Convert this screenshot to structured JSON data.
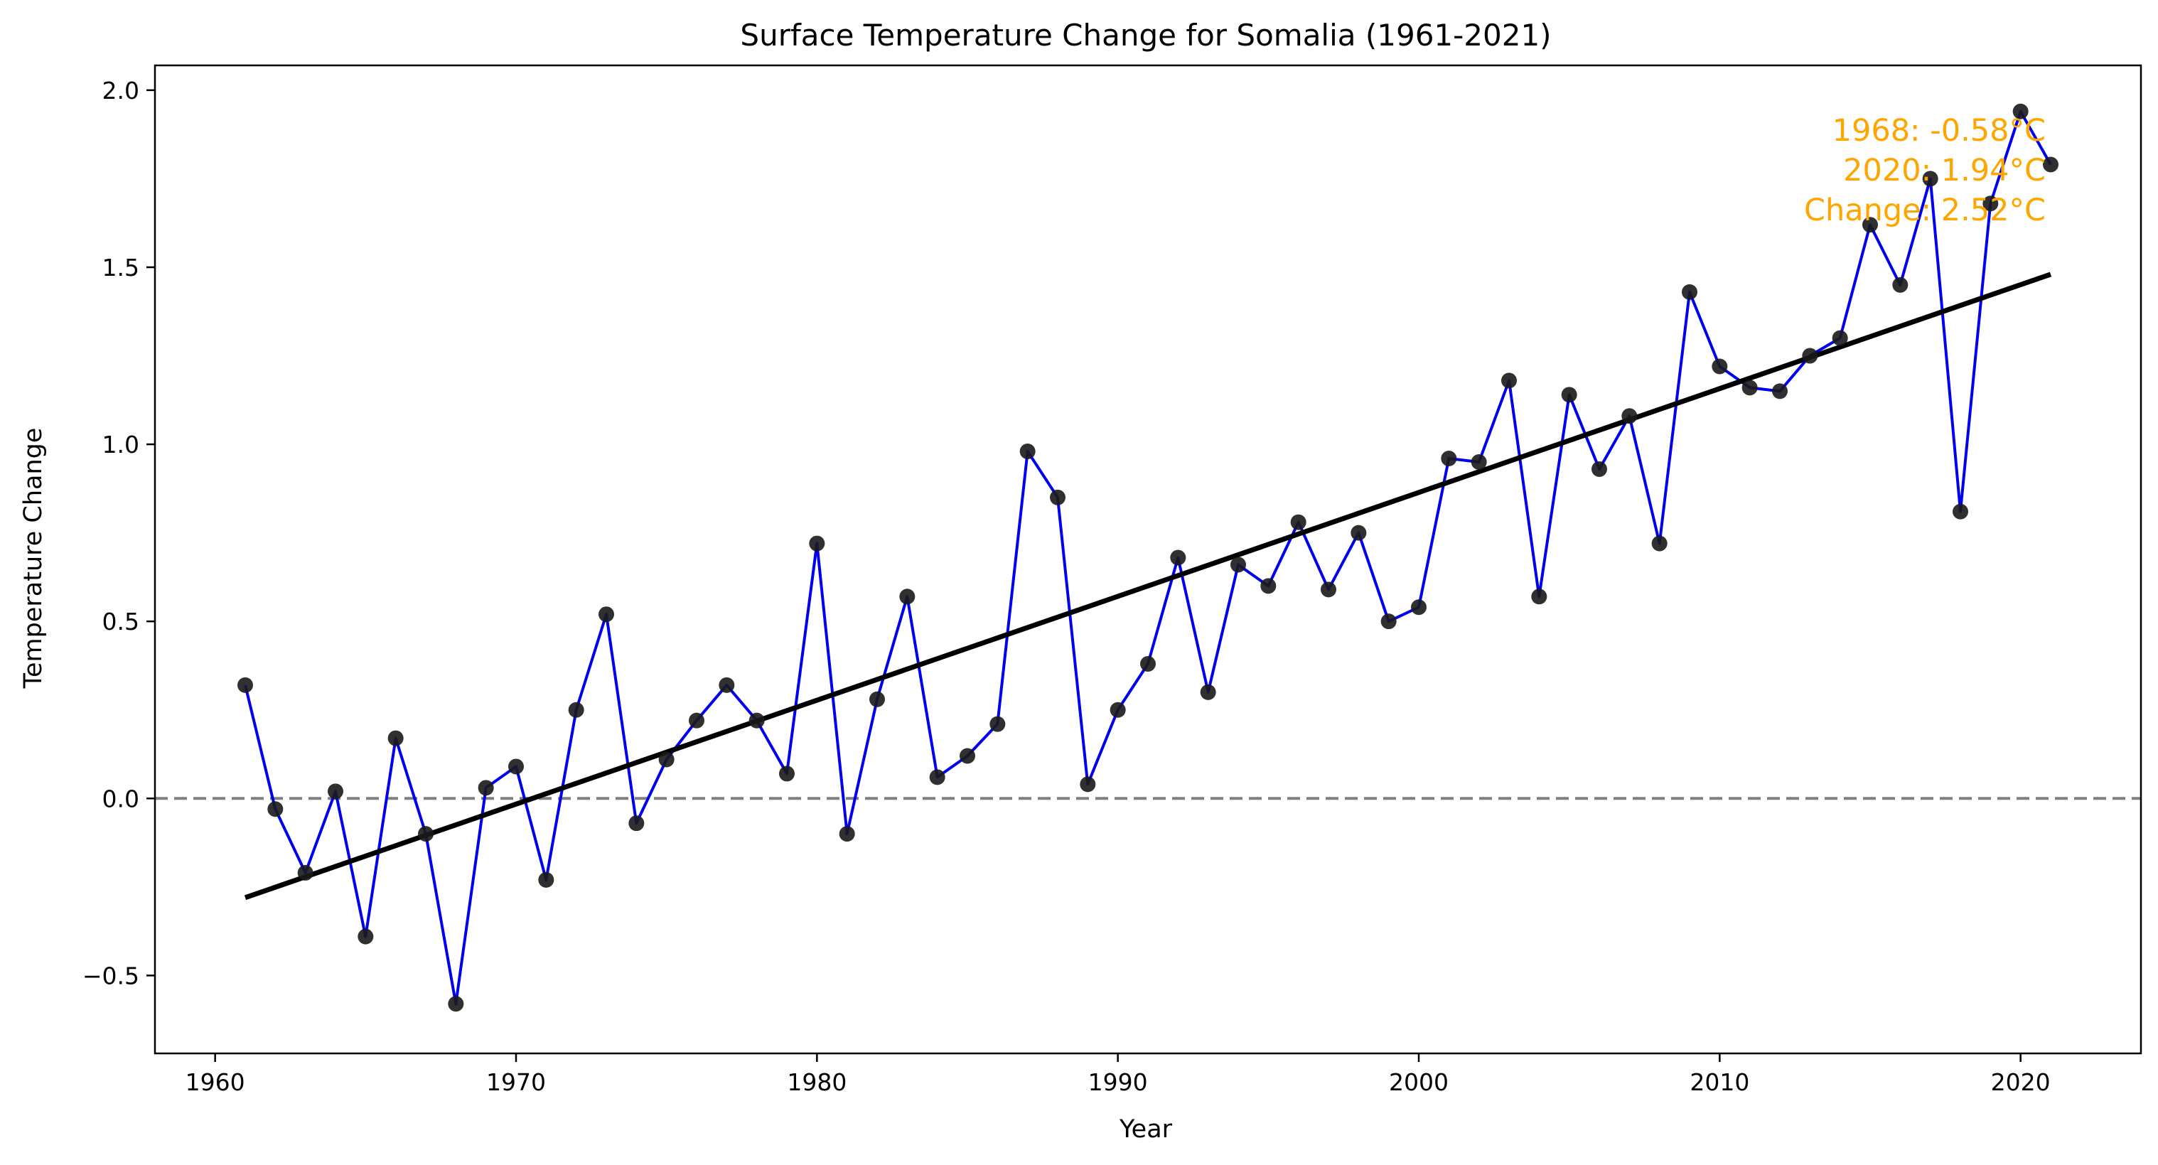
{
  "chart_data": {
    "type": "line",
    "title": "Surface Temperature Change for Somalia (1961-2021)",
    "xlabel": "Year",
    "ylabel": "Temperature Change",
    "xlim": [
      1958.0,
      2024.0
    ],
    "ylim": [
      -0.72,
      2.07
    ],
    "xticks": [
      1960,
      1970,
      1980,
      1990,
      2000,
      2010,
      2020
    ],
    "yticks": [
      -0.5,
      0.0,
      0.5,
      1.0,
      1.5,
      2.0
    ],
    "ytick_labels": [
      "−0.5",
      "0.0",
      "0.5",
      "1.0",
      "1.5",
      "2.0"
    ],
    "grid": false,
    "legend": "none",
    "x": [
      1961,
      1962,
      1963,
      1964,
      1965,
      1966,
      1967,
      1968,
      1969,
      1970,
      1971,
      1972,
      1973,
      1974,
      1975,
      1976,
      1977,
      1978,
      1979,
      1980,
      1981,
      1982,
      1983,
      1984,
      1985,
      1986,
      1987,
      1988,
      1989,
      1990,
      1991,
      1992,
      1993,
      1994,
      1995,
      1996,
      1997,
      1998,
      1999,
      2000,
      2001,
      2002,
      2003,
      2004,
      2005,
      2006,
      2007,
      2008,
      2009,
      2010,
      2011,
      2012,
      2013,
      2014,
      2015,
      2016,
      2017,
      2018,
      2019,
      2020,
      2021
    ],
    "series": [
      {
        "values": [
          0.32,
          -0.03,
          -0.21,
          0.02,
          -0.39,
          0.17,
          -0.1,
          -0.58,
          0.03,
          0.09,
          -0.23,
          0.25,
          0.52,
          -0.07,
          0.11,
          0.22,
          0.32,
          0.22,
          0.07,
          0.72,
          -0.1,
          0.28,
          0.57,
          0.06,
          0.12,
          0.21,
          0.98,
          0.85,
          0.04,
          0.25,
          0.38,
          0.68,
          0.3,
          0.66,
          0.6,
          0.78,
          0.59,
          0.75,
          0.5,
          0.54,
          0.96,
          0.95,
          1.18,
          0.57,
          1.14,
          0.93,
          1.08,
          0.72,
          1.43,
          1.22,
          1.16,
          1.15,
          1.25,
          1.3,
          1.62,
          1.45,
          1.75,
          0.81,
          1.68,
          1.94,
          1.79
        ],
        "line_color": "#0000ee",
        "marker_color": "#1a1a1a"
      }
    ],
    "trend": {
      "x": [
        1961,
        2021
      ],
      "y": [
        -0.28,
        1.48
      ],
      "color": "#000000"
    },
    "reference_line": {
      "y": 0.0,
      "color": "#808080",
      "style": "dashed"
    },
    "annotation": {
      "lines": [
        "1968: -0.58°C",
        "2020: 1.94°C",
        "Change: 2.52°C"
      ],
      "color": "#ffa500"
    }
  }
}
